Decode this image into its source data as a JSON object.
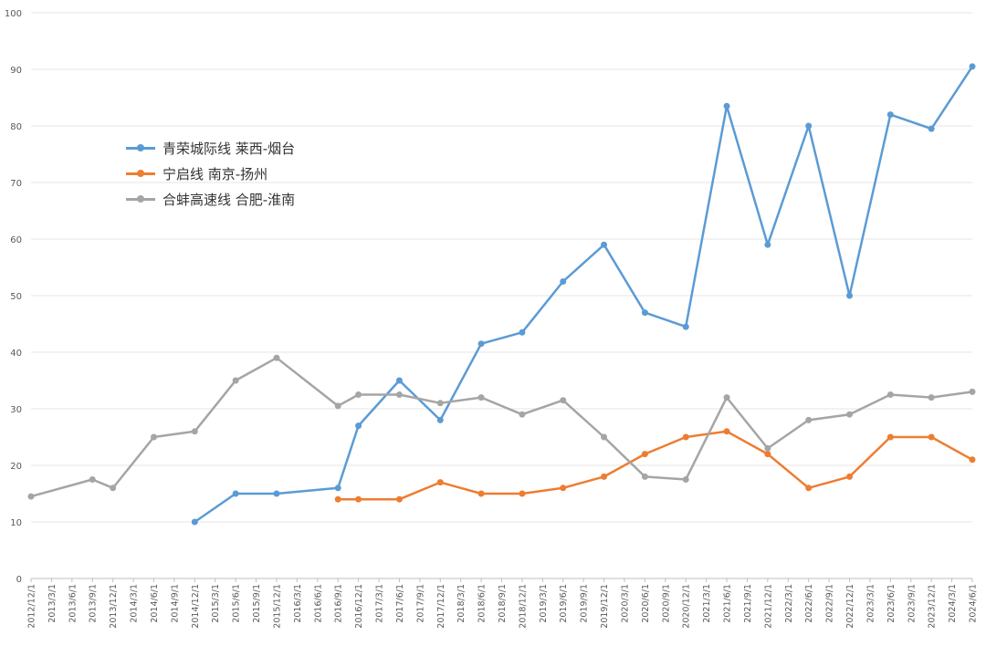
{
  "chart_data": {
    "type": "line",
    "title": "",
    "xlabel": "",
    "ylabel": "",
    "ylim": [
      0,
      100
    ],
    "yticks": [
      0,
      10,
      20,
      30,
      40,
      50,
      60,
      70,
      80,
      90,
      100
    ],
    "grid": "horizontal",
    "legend_position": "top-left",
    "categories": [
      "2012/12/1",
      "2013/3/1",
      "2013/6/1",
      "2013/9/1",
      "2013/12/1",
      "2014/3/1",
      "2014/6/1",
      "2014/9/1",
      "2014/12/1",
      "2015/3/1",
      "2015/6/1",
      "2015/9/1",
      "2015/12/1",
      "2016/3/1",
      "2016/6/1",
      "2016/9/1",
      "2016/12/1",
      "2017/3/1",
      "2017/6/1",
      "2017/9/1",
      "2017/12/1",
      "2018/3/1",
      "2018/6/1",
      "2018/9/1",
      "2018/12/1",
      "2019/3/1",
      "2019/6/1",
      "2019/9/1",
      "2019/12/1",
      "2020/3/1",
      "2020/6/1",
      "2020/9/1",
      "2020/12/1",
      "2021/3/1",
      "2021/6/1",
      "2021/9/1",
      "2021/12/1",
      "2022/3/1",
      "2022/6/1",
      "2022/9/1",
      "2022/12/1",
      "2023/3/1",
      "2023/6/1",
      "2023/9/1",
      "2023/12/1",
      "2024/3/1",
      "2024/6/1"
    ],
    "series": [
      {
        "name": "青荣城际线 莱西-烟台",
        "color": "#5b9bd5",
        "points": [
          {
            "x": "2014/12/1",
            "y": 10
          },
          {
            "x": "2015/6/1",
            "y": 15
          },
          {
            "x": "2015/12/1",
            "y": 15
          },
          {
            "x": "2016/9/1",
            "y": 16
          },
          {
            "x": "2016/12/1",
            "y": 27
          },
          {
            "x": "2017/6/1",
            "y": 35
          },
          {
            "x": "2017/12/1",
            "y": 28
          },
          {
            "x": "2018/6/1",
            "y": 41.5
          },
          {
            "x": "2018/12/1",
            "y": 43.5
          },
          {
            "x": "2019/6/1",
            "y": 52.5
          },
          {
            "x": "2019/12/1",
            "y": 59
          },
          {
            "x": "2020/6/1",
            "y": 47
          },
          {
            "x": "2020/12/1",
            "y": 44.5
          },
          {
            "x": "2021/6/1",
            "y": 83.5
          },
          {
            "x": "2021/12/1",
            "y": 59
          },
          {
            "x": "2022/6/1",
            "y": 80
          },
          {
            "x": "2022/12/1",
            "y": 50
          },
          {
            "x": "2023/6/1",
            "y": 82
          },
          {
            "x": "2023/12/1",
            "y": 79.5
          },
          {
            "x": "2024/6/1",
            "y": 90.5
          }
        ]
      },
      {
        "name": "宁启线 南京-扬州",
        "color": "#ed7d31",
        "points": [
          {
            "x": "2016/9/1",
            "y": 14
          },
          {
            "x": "2016/12/1",
            "y": 14
          },
          {
            "x": "2017/6/1",
            "y": 14
          },
          {
            "x": "2017/12/1",
            "y": 17
          },
          {
            "x": "2018/6/1",
            "y": 15
          },
          {
            "x": "2018/12/1",
            "y": 15
          },
          {
            "x": "2019/6/1",
            "y": 16
          },
          {
            "x": "2019/12/1",
            "y": 18
          },
          {
            "x": "2020/6/1",
            "y": 22
          },
          {
            "x": "2020/12/1",
            "y": 25
          },
          {
            "x": "2021/6/1",
            "y": 26
          },
          {
            "x": "2021/12/1",
            "y": 22
          },
          {
            "x": "2022/6/1",
            "y": 16
          },
          {
            "x": "2022/12/1",
            "y": 18
          },
          {
            "x": "2023/6/1",
            "y": 25
          },
          {
            "x": "2023/12/1",
            "y": 25
          },
          {
            "x": "2024/6/1",
            "y": 21
          }
        ]
      },
      {
        "name": "合蚌高速线 合肥-淮南",
        "color": "#a5a5a5",
        "points": [
          {
            "x": "2012/12/1",
            "y": 14.5
          },
          {
            "x": "2013/9/1",
            "y": 17.5
          },
          {
            "x": "2013/12/1",
            "y": 16
          },
          {
            "x": "2014/6/1",
            "y": 25
          },
          {
            "x": "2014/12/1",
            "y": 26
          },
          {
            "x": "2015/6/1",
            "y": 35
          },
          {
            "x": "2015/12/1",
            "y": 39
          },
          {
            "x": "2016/9/1",
            "y": 30.5
          },
          {
            "x": "2016/12/1",
            "y": 32.5
          },
          {
            "x": "2017/6/1",
            "y": 32.5
          },
          {
            "x": "2017/12/1",
            "y": 31
          },
          {
            "x": "2018/6/1",
            "y": 32
          },
          {
            "x": "2018/12/1",
            "y": 29
          },
          {
            "x": "2019/6/1",
            "y": 31.5
          },
          {
            "x": "2019/12/1",
            "y": 25
          },
          {
            "x": "2020/6/1",
            "y": 18
          },
          {
            "x": "2020/12/1",
            "y": 17.5
          },
          {
            "x": "2021/6/1",
            "y": 32
          },
          {
            "x": "2021/12/1",
            "y": 23
          },
          {
            "x": "2022/6/1",
            "y": 28
          },
          {
            "x": "2022/12/1",
            "y": 29
          },
          {
            "x": "2023/6/1",
            "y": 32.5
          },
          {
            "x": "2023/12/1",
            "y": 32
          },
          {
            "x": "2024/6/1",
            "y": 33
          }
        ]
      }
    ]
  }
}
